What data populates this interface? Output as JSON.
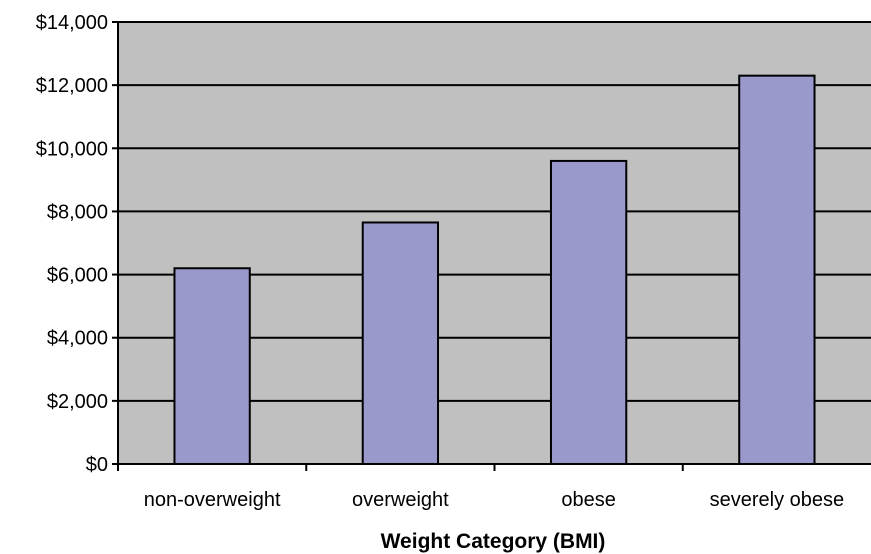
{
  "chart_data": {
    "type": "bar",
    "categories": [
      "non-overweight",
      "overweight",
      "obese",
      "severely obese"
    ],
    "values": [
      6200,
      7650,
      9600,
      12300
    ],
    "title": "",
    "xlabel": "Weight Category (BMI)",
    "ylabel": "",
    "ylim": [
      0,
      14000
    ],
    "yticks": [
      0,
      2000,
      4000,
      6000,
      8000,
      10000,
      12000,
      14000
    ],
    "ytick_labels": [
      "$0",
      "$2,000",
      "$4,000",
      "$6,000",
      "$8,000",
      "$10,000",
      "$12,000",
      "$14,000"
    ],
    "grid": true,
    "legend": "none",
    "colors": {
      "plot_background": "#c0c0c0",
      "bar_fill": "#9999cc",
      "bar_stroke": "#000000",
      "gridline": "#000000"
    }
  }
}
